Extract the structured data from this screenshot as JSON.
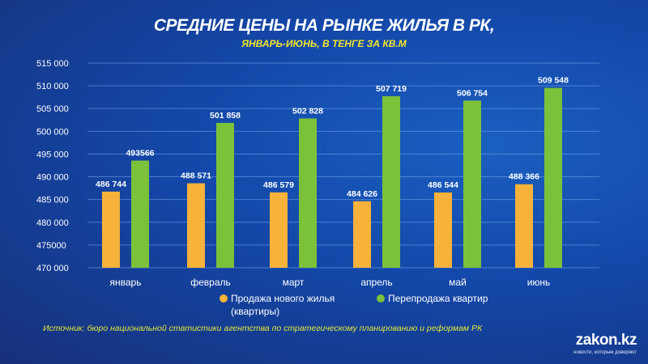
{
  "title": "СРЕДНИЕ ЦЕНЫ НА РЫНКЕ ЖИЛЬЯ В РК,",
  "subtitle": "ЯНВАРЬ-ИЮНЬ, В ТЕНГЕ ЗА КВ.М",
  "source": "Источник: бюро национальной статистики агентства по стратегическому планированию и реформам РК",
  "logo": {
    "name": "zakon.kz",
    "tagline": "новости, которым доверяют"
  },
  "chart_data": {
    "type": "bar",
    "title": "СРЕДНИЕ ЦЕНЫ НА РЫНКЕ ЖИЛЬЯ В РК,",
    "subtitle": "ЯНВАРЬ-ИЮНЬ, В ТЕНГЕ ЗА КВ.М",
    "categories": [
      "январь",
      "февраль",
      "март",
      "апрель",
      "май",
      "июнь"
    ],
    "ylim": [
      470000,
      515000
    ],
    "yticks": [
      470000,
      475000,
      480000,
      485000,
      490000,
      495000,
      500000,
      505000,
      510000,
      515000
    ],
    "ytick_labels": [
      "470 000",
      "475000",
      "480 000",
      "485 000",
      "490 000",
      "495 000",
      "500 000",
      "505 000",
      "510 000",
      "515 000"
    ],
    "grid": true,
    "legend_placement": "bottom",
    "series": [
      {
        "name": "Продажа нового жилья (квартиры)",
        "legend_lines": [
          "Продажа нового жилья",
          "(квартиры)"
        ],
        "color": "#f6b23a",
        "values": [
          486744,
          488571,
          486579,
          484626,
          486544,
          488366
        ],
        "labels": [
          "486 744",
          "488 571",
          "486 579",
          "484 626",
          "486 544",
          "488 366"
        ]
      },
      {
        "name": "Перепродажа квартир",
        "legend_lines": [
          "Перепродажа квартир"
        ],
        "color": "#7cc13a",
        "values": [
          493566,
          501858,
          502828,
          507719,
          506754,
          509548
        ],
        "labels": [
          "493566",
          "501 858",
          "502 828",
          "507 719",
          "506 754",
          "509 548"
        ]
      }
    ]
  }
}
